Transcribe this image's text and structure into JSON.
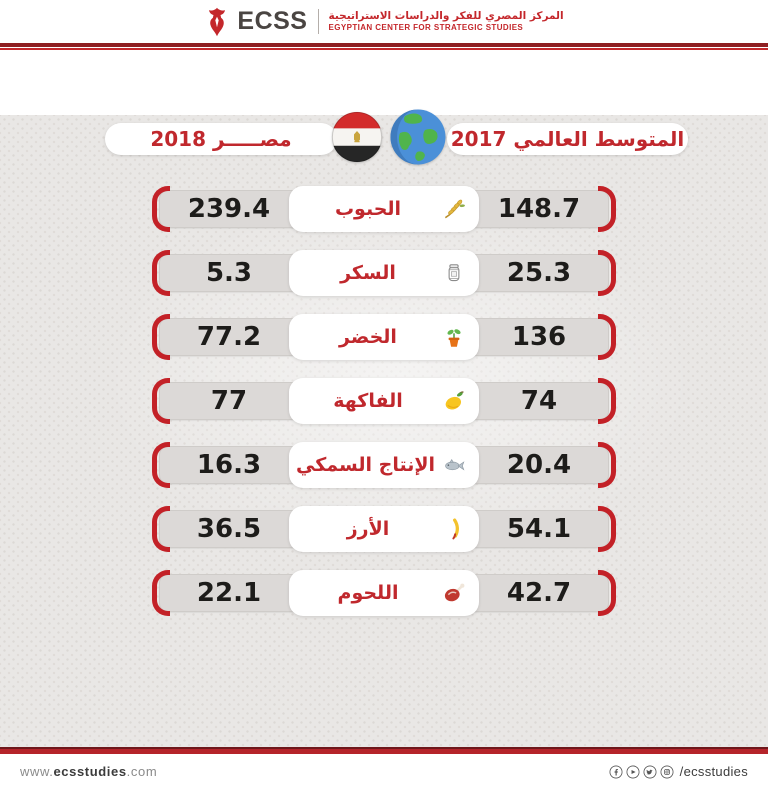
{
  "header": {
    "logo_text": "ECSS",
    "org_name_ar": "المركز المصري للفكر والدراسات الاستراتيجية",
    "org_name_en": "EGYPTIAN CENTER FOR STRATEGIC STUDIES"
  },
  "legend": {
    "egypt_label": "مصـــــر 2018",
    "global_label": "المتوسط العالمي 2017"
  },
  "rows": [
    {
      "category": "الحبوب",
      "icon": "wheat-icon",
      "egypt_2018": "239.4",
      "global_2017": "148.7"
    },
    {
      "category": "السكر",
      "icon": "sugar-icon",
      "egypt_2018": "5.3",
      "global_2017": "25.3"
    },
    {
      "category": "الخضر",
      "icon": "plant-icon",
      "egypt_2018": "77.2",
      "global_2017": "136"
    },
    {
      "category": "الفاكهة",
      "icon": "mango-icon",
      "egypt_2018": "77",
      "global_2017": "74"
    },
    {
      "category": "الإنتاج السمكي",
      "icon": "fish-icon",
      "egypt_2018": "16.3",
      "global_2017": "20.4"
    },
    {
      "category": "الأرز",
      "icon": "rice-icon",
      "egypt_2018": "36.5",
      "global_2017": "54.1"
    },
    {
      "category": "اللحوم",
      "icon": "meat-icon",
      "egypt_2018": "22.1",
      "global_2017": "42.7"
    }
  ],
  "chart_data": {
    "type": "table",
    "categories": [
      "الحبوب",
      "السكر",
      "الخضر",
      "الفاكهة",
      "الإنتاج السمكي",
      "الأرز",
      "اللحوم"
    ],
    "series": [
      {
        "name": "المتوسط العالمي 2017",
        "values": [
          148.7,
          25.3,
          136,
          74,
          20.4,
          54.1,
          42.7
        ]
      },
      {
        "name": "مصر 2018",
        "values": [
          239.4,
          5.3,
          77.2,
          77,
          16.3,
          36.5,
          22.1
        ]
      }
    ],
    "title": "",
    "legend_position": "top",
    "grid": false
  },
  "footer": {
    "website_prefix": "www.",
    "website_bold": "ecsstudies",
    "website_suffix": ".com",
    "social_icons": [
      "facebook-icon",
      "youtube-icon",
      "twitter-icon",
      "instagram-icon"
    ],
    "social_handle": "/ecsstudies"
  },
  "colors": {
    "accent_red": "#c4272b",
    "dark_red": "#8e1f22",
    "label_red": "#c0282d",
    "bar_gray": "#dcd9d7",
    "background": "#e9e7e5",
    "number_ink": "#1d1c1a"
  }
}
